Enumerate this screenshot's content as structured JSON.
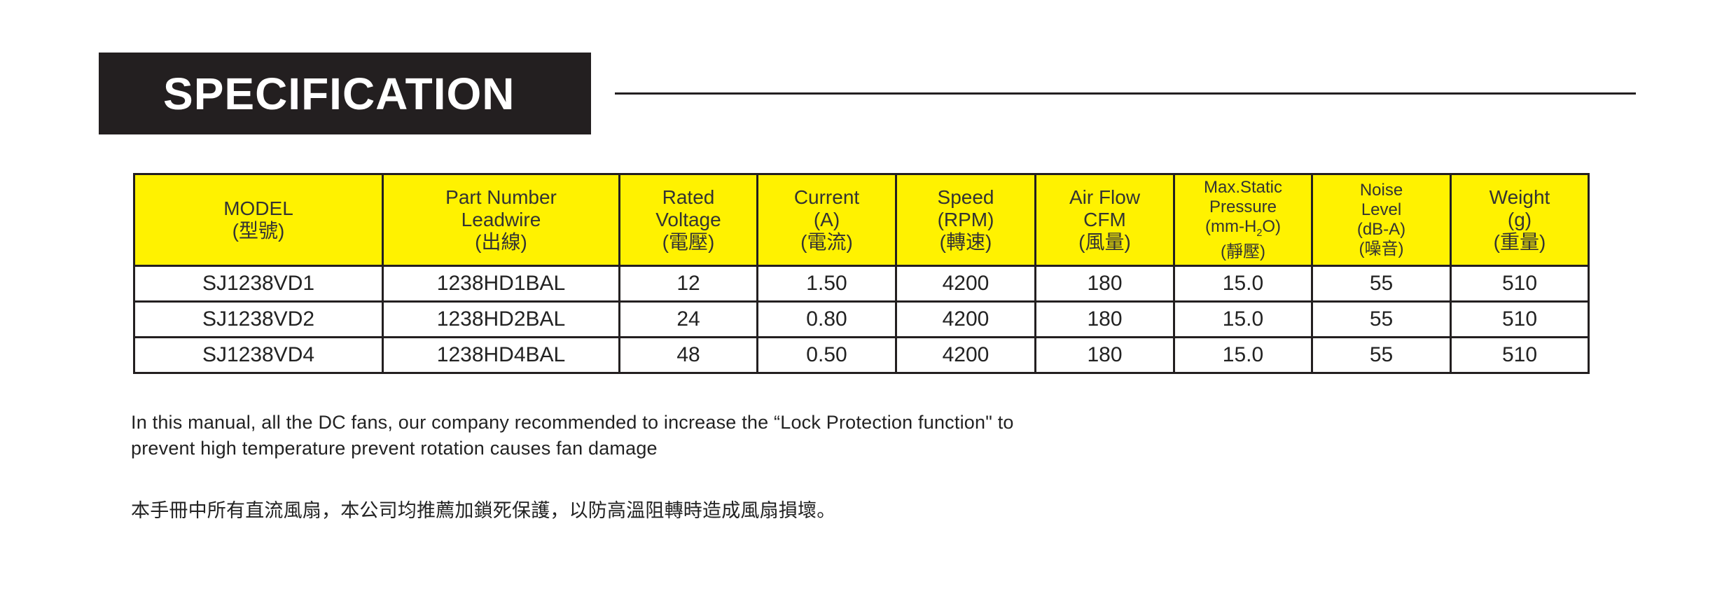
{
  "banner": {
    "title": "SPECIFICATION"
  },
  "colors": {
    "header_bg": "#fff200",
    "banner_bg": "#231f20"
  },
  "table": {
    "headers": [
      {
        "lines": [
          "MODEL",
          "(型號)"
        ]
      },
      {
        "lines": [
          "Part Number",
          "Leadwire",
          "(出線)"
        ]
      },
      {
        "lines": [
          "Rated",
          "Voltage",
          "(電壓)"
        ]
      },
      {
        "lines": [
          "Current",
          "(A)",
          "(電流)"
        ]
      },
      {
        "lines": [
          "Speed",
          "(RPM)",
          "(轉速)"
        ]
      },
      {
        "lines": [
          "Air Flow",
          "CFM",
          "(風量)"
        ]
      },
      {
        "lines": [
          "Max.Static",
          "Pressure",
          "(mm-H",
          "2",
          "O)",
          "(靜壓)"
        ]
      },
      {
        "lines": [
          "Noise",
          "Level",
          "(dB-A)",
          "(噪音)"
        ]
      },
      {
        "lines": [
          "Weight",
          "(g)",
          "(重量)"
        ]
      }
    ],
    "rows": [
      [
        "SJ1238VD1",
        "1238HD1BAL",
        "12",
        "1.50",
        "4200",
        "180",
        "15.0",
        "55",
        "510"
      ],
      [
        "SJ1238VD2",
        "1238HD2BAL",
        "24",
        "0.80",
        "4200",
        "180",
        "15.0",
        "55",
        "510"
      ],
      [
        "SJ1238VD4",
        "1238HD4BAL",
        "48",
        "0.50",
        "4200",
        "180",
        "15.0",
        "55",
        "510"
      ]
    ]
  },
  "notes": {
    "en_line1": "In this manual, all the DC fans, our company recommended to increase the  “Lock Protection function\" to",
    "en_line2": "prevent high temperature prevent rotation causes fan damage",
    "zh": "本手冊中所有直流風扇，本公司均推薦加鎖死保護，以防高溫阻轉時造成風扇損壞。"
  }
}
